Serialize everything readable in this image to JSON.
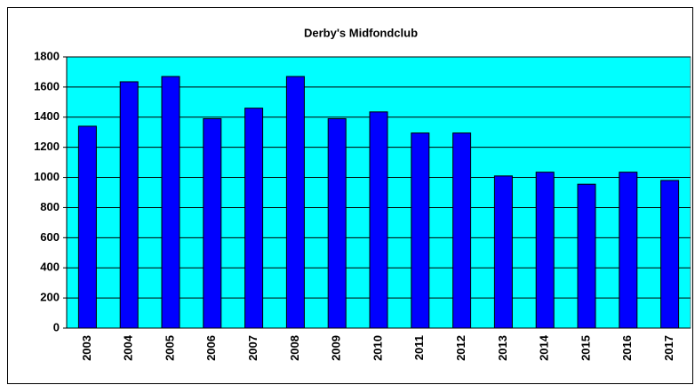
{
  "chart_data": {
    "type": "bar",
    "title": "Derby's Midfondclub",
    "categories": [
      "2003",
      "2004",
      "2005",
      "2006",
      "2007",
      "2008",
      "2009",
      "2010",
      "2011",
      "2012",
      "2013",
      "2014",
      "2015",
      "2016",
      "2017"
    ],
    "values": [
      1340,
      1635,
      1670,
      1390,
      1460,
      1670,
      1390,
      1435,
      1295,
      1295,
      1010,
      1035,
      955,
      1035,
      980
    ],
    "color": "#0000ff",
    "plot_background": "#00ffff",
    "ylim": [
      0,
      1800
    ],
    "yticks": [
      0,
      200,
      400,
      600,
      800,
      1000,
      1200,
      1400,
      1600,
      1800
    ],
    "grid": true
  }
}
